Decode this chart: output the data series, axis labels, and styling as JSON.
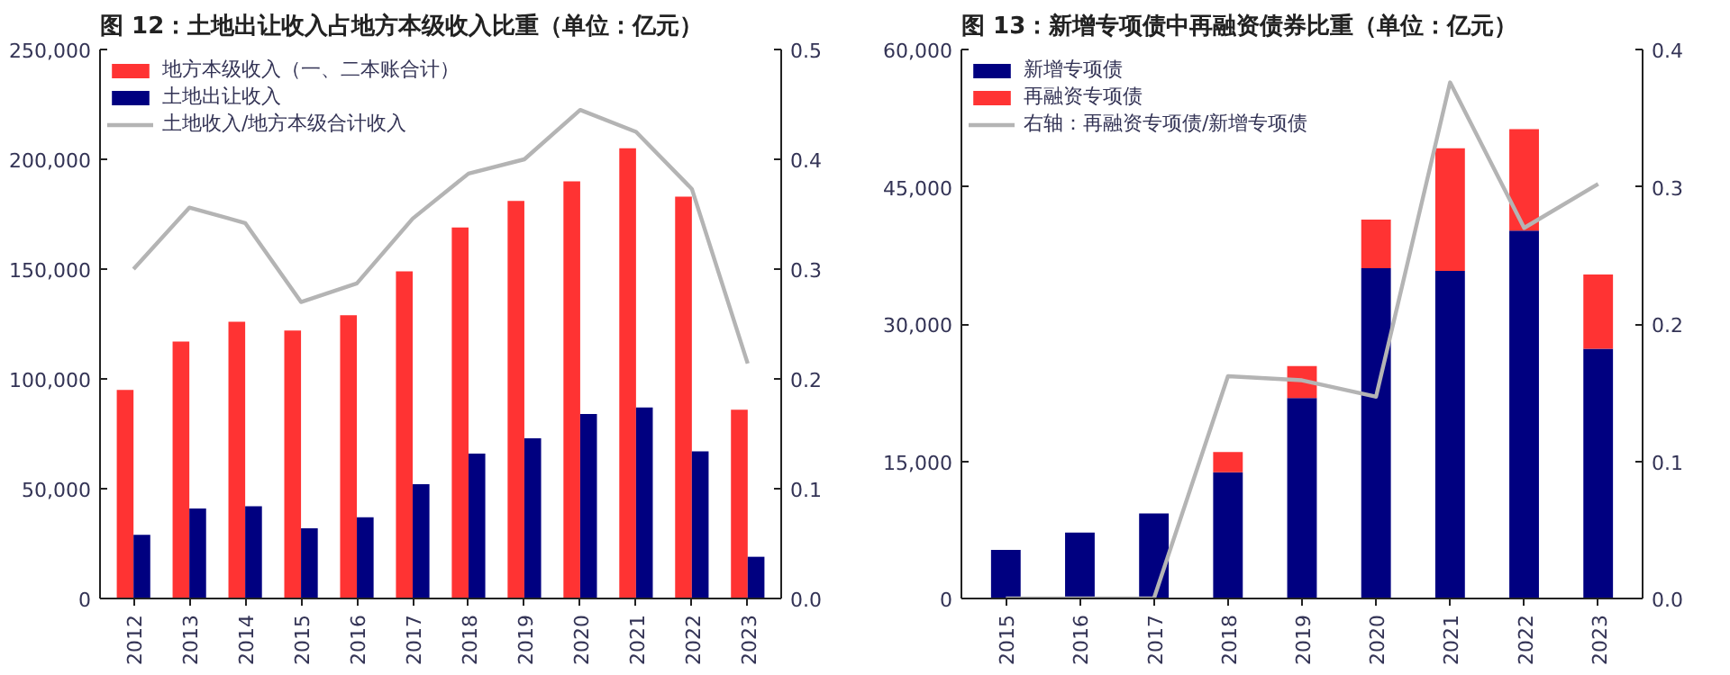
{
  "chart_data": [
    {
      "type": "bar",
      "title": "图 12：土地出让收入占地方本级收入比重（单位：亿元）",
      "categories": [
        "2012",
        "2013",
        "2014",
        "2015",
        "2016",
        "2017",
        "2018",
        "2019",
        "2020",
        "2021",
        "2022",
        "2023"
      ],
      "series": [
        {
          "name": "地方本级收入（一、二本账合计）",
          "color": "#ff3333",
          "values": [
            95000,
            117000,
            126000,
            122000,
            129000,
            149000,
            169000,
            181000,
            190000,
            205000,
            183000,
            86000
          ]
        },
        {
          "name": "土地出让收入",
          "color": "#000080",
          "values": [
            29000,
            41000,
            42000,
            32000,
            37000,
            52000,
            66000,
            73000,
            84000,
            87000,
            67000,
            19000
          ]
        },
        {
          "name": "土地收入/地方本级合计收入",
          "type": "line",
          "axis": "y2",
          "color": "#b4b4b4",
          "values": [
            0.3,
            0.356,
            0.342,
            0.27,
            0.287,
            0.346,
            0.387,
            0.4,
            0.445,
            0.425,
            0.373,
            0.214
          ]
        }
      ],
      "ylim": [
        0,
        250000
      ],
      "yticks": [
        0,
        {
          "value": 50000,
          "label": "50,000"
        },
        {
          "value": 100000,
          "label": "100,000"
        },
        {
          "value": 150000,
          "label": "150,000"
        },
        {
          "value": 200000,
          "label": "200,000"
        },
        {
          "value": 250000,
          "label": "250,000"
        }
      ],
      "y2lim": [
        0,
        0.5
      ],
      "y2ticks": [
        {
          "value": 0,
          "label": "0.0"
        },
        0.1,
        0.2,
        0.3,
        0.4,
        0.5
      ],
      "legend": "top left"
    },
    {
      "type": "bar",
      "title": "图 13：新增专项债中再融资债券比重（单位：亿元）",
      "stacked": true,
      "categories": [
        "2015",
        "2016",
        "2017",
        "2018",
        "2019",
        "2020",
        "2021",
        "2022",
        "2023"
      ],
      "series": [
        {
          "name": "新增专项债",
          "color": "#000080",
          "values": [
            5300,
            7200,
            9300,
            13800,
            21900,
            36100,
            35800,
            40200,
            27300
          ]
        },
        {
          "name": "再融资专项债",
          "color": "#ff3333",
          "values": [
            0,
            0,
            0,
            2200,
            3500,
            5300,
            13400,
            11100,
            8100
          ]
        },
        {
          "name": "右轴：再融资专项债/新增专项债",
          "type": "line",
          "axis": "y2",
          "color": "#b4b4b4",
          "values": [
            0,
            0,
            0,
            0.162,
            0.159,
            0.147,
            0.376,
            0.27,
            0.302
          ]
        }
      ],
      "ylim": [
        0,
        60000
      ],
      "yticks": [
        0,
        {
          "value": 15000,
          "label": "15,000"
        },
        {
          "value": 30000,
          "label": "30,000"
        },
        {
          "value": 45000,
          "label": "45,000"
        },
        {
          "value": 60000,
          "label": "60,000"
        }
      ],
      "y2lim": [
        0,
        0.4
      ],
      "y2ticks": [
        {
          "value": 0,
          "label": "0.0"
        },
        0.1,
        0.2,
        0.3,
        0.4
      ],
      "legend": "top left"
    }
  ]
}
